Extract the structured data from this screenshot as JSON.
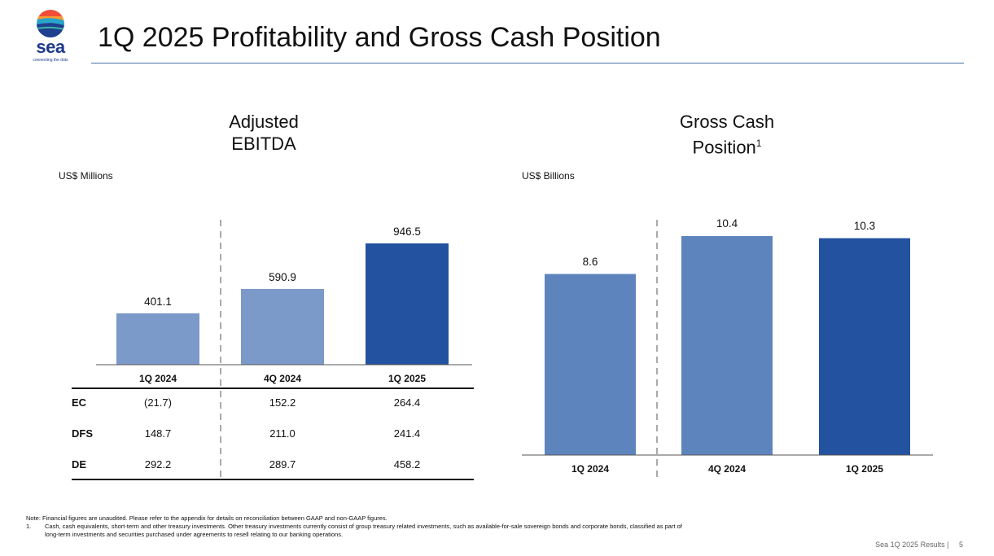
{
  "header": {
    "title": "1Q 2025 Profitability and Gross Cash Position",
    "logo_text": "sea",
    "logo_tagline": "connecting the dots"
  },
  "colors": {
    "bar_light": "#7b99c9",
    "bar_medium": "#5e84bd",
    "bar_dark": "#2352a0",
    "rule": "#4b6fa8"
  },
  "chart_data": [
    {
      "type": "bar",
      "title_line1": "Adjusted",
      "title_line2": "EBITDA",
      "unit": "US$ Millions",
      "categories": [
        "1Q 2024",
        "4Q 2024",
        "1Q 2025"
      ],
      "values": [
        401.1,
        590.9,
        946.5
      ],
      "value_labels": [
        "401.1",
        "590.9",
        "946.5"
      ],
      "ylim": [
        0,
        946.5
      ],
      "grid": false,
      "table": {
        "rows": [
          {
            "label": "EC",
            "values": [
              "(21.7)",
              "152.2",
              "264.4"
            ]
          },
          {
            "label": "DFS",
            "values": [
              "148.7",
              "211.0",
              "241.4"
            ]
          },
          {
            "label": "DE",
            "values": [
              "292.2",
              "289.7",
              "458.2"
            ]
          }
        ]
      }
    },
    {
      "type": "bar",
      "title_line1": "Gross Cash",
      "title_line2": "Position",
      "title_sup": "1",
      "unit": "US$ Billions",
      "categories": [
        "1Q 2024",
        "4Q 2024",
        "1Q 2025"
      ],
      "values": [
        8.6,
        10.4,
        10.3
      ],
      "value_labels": [
        "8.6",
        "10.4",
        "10.3"
      ],
      "ylim": [
        0,
        10.4
      ],
      "grid": false
    }
  ],
  "footnotes": {
    "note": "Note: Financial figures are unaudited. Please refer to the appendix for details on reconciliation between GAAP and non-GAAP figures.",
    "fn1_num": "1.",
    "fn1_line1": "Cash, cash equivalents, short-term and other treasury investments. Other treasury investments currently consist of group treasury related investments, such as available-for-sale sovereign bonds and corporate bonds, classified as part of",
    "fn1_line2": "long-term investments and securities purchased under agreements to resell relating to our banking operations."
  },
  "footer": {
    "text": "Sea 1Q 2025 Results |",
    "page": "5"
  }
}
